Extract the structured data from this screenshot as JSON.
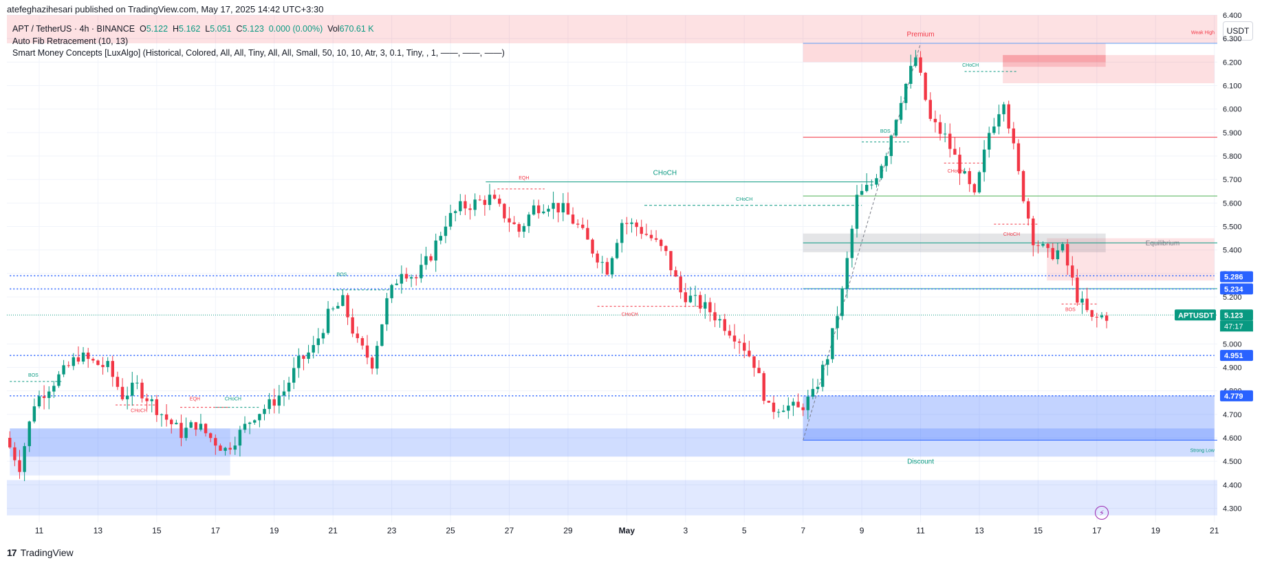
{
  "publish_line": "atefeghazihesari published on TradingView.com, May 17, 2025 14:42 UTC+3:30",
  "legend": {
    "symbol": "APT / TetherUS · 4h · BINANCE",
    "o_label": "O",
    "o": "5.122",
    "h_label": "H",
    "h": "5.162",
    "l_label": "L",
    "l": "5.051",
    "c_label": "C",
    "c": "5.123",
    "change": "0.000 (0.00%)",
    "vol_label": "Vol",
    "vol": "670.61 K",
    "indicator1": "Auto Fib Retracement (10, 13)",
    "indicator2": "Smart Money Concepts [LuxAlgo] (Historical, Colored, All, All, Tiny, All, All, Small, 50, 10, 10, Atr, 3, 0.1, Tiny, , 1, ——, ——, ——)"
  },
  "currency_label": "USDT",
  "footer": {
    "logo": "17",
    "brand": "TradingView"
  },
  "bolt_icon": "lightning-icon",
  "colors": {
    "up": "#089981",
    "down": "#f23645",
    "blue": "#2962ff"
  },
  "chart_data": {
    "type": "candlestick",
    "title": "APT / TetherUS · 4h · BINANCE",
    "ylim": [
      4.24,
      6.4
    ],
    "xlim_days_apr10": [
      -0.1,
      41.1
    ],
    "y_ticks": [
      "6.400",
      "6.300",
      "6.200",
      "6.100",
      "6.000",
      "5.900",
      "5.800",
      "5.700",
      "5.600",
      "5.500",
      "5.400",
      "5.300",
      "5.200",
      "5.000",
      "4.900",
      "4.800",
      "4.700",
      "4.600",
      "4.500",
      "4.400",
      "4.300"
    ],
    "x_ticks": [
      {
        "label": "11",
        "day": 1
      },
      {
        "label": "13",
        "day": 3
      },
      {
        "label": "15",
        "day": 5
      },
      {
        "label": "17",
        "day": 7
      },
      {
        "label": "19",
        "day": 9
      },
      {
        "label": "21",
        "day": 11
      },
      {
        "label": "23",
        "day": 13
      },
      {
        "label": "25",
        "day": 15
      },
      {
        "label": "27",
        "day": 17
      },
      {
        "label": "29",
        "day": 19
      },
      {
        "label": "May",
        "day": 21
      },
      {
        "label": "3",
        "day": 23
      },
      {
        "label": "5",
        "day": 25
      },
      {
        "label": "7",
        "day": 27
      },
      {
        "label": "9",
        "day": 29
      },
      {
        "label": "11",
        "day": 31
      },
      {
        "label": "13",
        "day": 33
      },
      {
        "label": "15",
        "day": 35
      },
      {
        "label": "17",
        "day": 37
      },
      {
        "label": "19",
        "day": 39
      },
      {
        "label": "21",
        "day": 41
      }
    ],
    "price_badges": [
      {
        "label": "5.286",
        "value": 5.286,
        "color": "#2962ff"
      },
      {
        "label": "5.234",
        "value": 5.234,
        "color": "#2962ff"
      },
      {
        "label": "5.123",
        "value": 5.123,
        "color": "#089981",
        "symbol": "APTUSDT",
        "countdown": "47:17"
      },
      {
        "label": "4.951",
        "value": 4.951,
        "color": "#2962ff"
      },
      {
        "label": "4.779",
        "value": 4.779,
        "color": "#2962ff"
      }
    ],
    "path_points": [
      [
        0,
        4.6
      ],
      [
        0.5,
        4.48
      ],
      [
        1.0,
        4.75
      ],
      [
        1.5,
        4.82
      ],
      [
        2.0,
        4.88
      ],
      [
        2.5,
        4.95
      ],
      [
        3.0,
        4.92
      ],
      [
        3.5,
        4.9
      ],
      [
        4.0,
        4.78
      ],
      [
        4.5,
        4.82
      ],
      [
        5.0,
        4.75
      ],
      [
        5.5,
        4.68
      ],
      [
        6.0,
        4.62
      ],
      [
        6.5,
        4.66
      ],
      [
        7.0,
        4.6
      ],
      [
        7.5,
        4.55
      ],
      [
        8.0,
        4.62
      ],
      [
        8.5,
        4.7
      ],
      [
        9.0,
        4.74
      ],
      [
        9.5,
        4.8
      ],
      [
        10.0,
        4.92
      ],
      [
        10.5,
        4.98
      ],
      [
        11.0,
        5.12
      ],
      [
        11.5,
        5.18
      ],
      [
        12.0,
        5.0
      ],
      [
        12.5,
        4.92
      ],
      [
        13.0,
        5.18
      ],
      [
        13.5,
        5.32
      ],
      [
        14.0,
        5.28
      ],
      [
        14.5,
        5.38
      ],
      [
        15.0,
        5.52
      ],
      [
        15.5,
        5.58
      ],
      [
        16.0,
        5.6
      ],
      [
        16.5,
        5.62
      ],
      [
        17.0,
        5.55
      ],
      [
        17.5,
        5.48
      ],
      [
        18.0,
        5.58
      ],
      [
        18.5,
        5.6
      ],
      [
        19.0,
        5.57
      ],
      [
        19.5,
        5.5
      ],
      [
        20.0,
        5.4
      ],
      [
        20.5,
        5.32
      ],
      [
        21.0,
        5.52
      ],
      [
        21.5,
        5.5
      ],
      [
        22.0,
        5.45
      ],
      [
        22.5,
        5.38
      ],
      [
        23.0,
        5.22
      ],
      [
        23.5,
        5.18
      ],
      [
        24.0,
        5.14
      ],
      [
        24.5,
        5.08
      ],
      [
        25.0,
        5.02
      ],
      [
        25.5,
        4.92
      ],
      [
        26.0,
        4.72
      ],
      [
        26.5,
        4.74
      ],
      [
        27.0,
        4.72
      ],
      [
        27.5,
        4.78
      ],
      [
        28.0,
        4.95
      ],
      [
        28.5,
        5.22
      ],
      [
        29.0,
        5.62
      ],
      [
        29.5,
        5.68
      ],
      [
        30.0,
        5.82
      ],
      [
        30.5,
        6.05
      ],
      [
        31.0,
        6.22
      ],
      [
        31.5,
        5.95
      ],
      [
        32.0,
        5.88
      ],
      [
        32.5,
        5.75
      ],
      [
        33.0,
        5.62
      ],
      [
        33.5,
        5.9
      ],
      [
        34.0,
        6.05
      ],
      [
        34.5,
        5.72
      ],
      [
        35.0,
        5.45
      ],
      [
        35.5,
        5.38
      ],
      [
        36.0,
        5.4
      ],
      [
        36.5,
        5.2
      ],
      [
        37.0,
        5.1
      ],
      [
        37.4,
        5.12
      ]
    ],
    "levels": [
      {
        "label": "CHoCH",
        "color": "#089981",
        "y": 5.69,
        "x1": 16.2,
        "x2": 29.4,
        "style": "solid"
      },
      {
        "label": "CHoCH",
        "color": "#089981",
        "y": 5.59,
        "x1": 21.6,
        "x2": 29.0,
        "style": "dashed"
      },
      {
        "label": "BOS",
        "color": "#089981",
        "y": 5.29,
        "x1": 0.0,
        "x2": 41.0,
        "style": "dotted_blue"
      },
      {
        "label": "",
        "color": "#2962ff",
        "y": 5.234,
        "x1": 0.0,
        "x2": 41.0,
        "style": "dotted_blue"
      },
      {
        "label": "",
        "color": "#2962ff",
        "y": 4.951,
        "x1": 0.0,
        "x2": 41.0,
        "style": "dotted_blue"
      },
      {
        "label": "",
        "color": "#2962ff",
        "y": 4.779,
        "x1": 0.0,
        "x2": 41.0,
        "style": "dotted_blue"
      }
    ],
    "zones": [
      {
        "label": "Premium",
        "type": "premium"
      },
      {
        "label": "Equilibrium",
        "type": "equilibrium"
      },
      {
        "label": "Discount",
        "type": "discount"
      },
      {
        "label": "Weak High",
        "type": "text"
      },
      {
        "label": "Strong Low",
        "type": "text"
      }
    ],
    "annotations": [
      {
        "text": "CHoCH",
        "color": "#089981",
        "day": 22.3,
        "y": 5.72
      },
      {
        "text": "CHoCH",
        "color": "#089981",
        "day": 25.0,
        "y": 5.61
      },
      {
        "text": "EQH",
        "color": "#f23645",
        "day": 17.5,
        "y": 5.7
      },
      {
        "text": "CHoCH",
        "color": "#f23645",
        "day": 21.1,
        "y": 5.12
      },
      {
        "text": "BOS",
        "color": "#089981",
        "day": 11.3,
        "y": 5.29
      },
      {
        "text": "BOS",
        "color": "#089981",
        "day": 0.8,
        "y": 4.86
      },
      {
        "text": "CHoCH",
        "color": "#f23645",
        "day": 4.4,
        "y": 4.71
      },
      {
        "text": "EQH",
        "color": "#f23645",
        "day": 6.3,
        "y": 4.76
      },
      {
        "text": "CHoCH",
        "color": "#089981",
        "day": 7.6,
        "y": 4.76
      },
      {
        "text": "BOS",
        "color": "#089981",
        "day": 29.8,
        "y": 5.9
      },
      {
        "text": "CHoCH",
        "color": "#089981",
        "day": 32.7,
        "y": 6.18
      },
      {
        "text": "CHoCH",
        "color": "#f23645",
        "day": 32.2,
        "y": 5.73
      },
      {
        "text": "CHoCH",
        "color": "#f23645",
        "day": 34.1,
        "y": 5.46
      },
      {
        "text": "BOS",
        "color": "#f23645",
        "day": 36.1,
        "y": 5.14
      }
    ]
  }
}
